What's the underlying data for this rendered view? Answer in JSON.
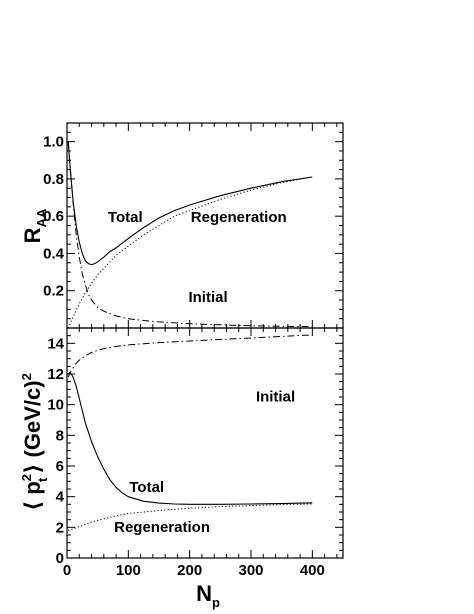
{
  "chart_data": [
    {
      "type": "line",
      "panel": "top",
      "title": "",
      "xlabel": "",
      "ylabel": "R",
      "ylabel_sub": "AA",
      "xlim": [
        0,
        450
      ],
      "ylim": [
        0,
        1.1
      ],
      "x_ticks": [
        "0",
        "100",
        "200",
        "300",
        "400"
      ],
      "x_tick_values": [
        0,
        100,
        200,
        300,
        400
      ],
      "y_ticks": [
        "0.2",
        "0.4",
        "0.6",
        "0.8",
        "1.0"
      ],
      "y_tick_values": [
        0.2,
        0.4,
        0.6,
        0.8,
        1.0
      ],
      "annotations": [
        {
          "text": "Total",
          "x": 95,
          "y": 0.57
        },
        {
          "text": "Regeneration",
          "x": 280,
          "y": 0.57
        },
        {
          "text": "Initial",
          "x": 230,
          "y": 0.14
        }
      ],
      "series": [
        {
          "style": "solid",
          "x": [
            2,
            5,
            10,
            15,
            20,
            25,
            30,
            35,
            40,
            45,
            50,
            60,
            70,
            80,
            100,
            125,
            150,
            175,
            200,
            250,
            300,
            350,
            400
          ],
          "y": [
            1.0,
            0.86,
            0.68,
            0.55,
            0.46,
            0.4,
            0.36,
            0.345,
            0.34,
            0.345,
            0.355,
            0.38,
            0.41,
            0.43,
            0.48,
            0.54,
            0.59,
            0.63,
            0.66,
            0.71,
            0.75,
            0.785,
            0.81
          ]
        },
        {
          "style": "dotted",
          "x": [
            2,
            10,
            20,
            30,
            40,
            50,
            60,
            80,
            100,
            125,
            150,
            175,
            200,
            250,
            300,
            350,
            400
          ],
          "y": [
            0.0,
            0.06,
            0.13,
            0.19,
            0.24,
            0.285,
            0.32,
            0.39,
            0.44,
            0.5,
            0.55,
            0.6,
            0.63,
            0.69,
            0.74,
            0.78,
            0.81
          ]
        },
        {
          "style": "dashdot",
          "x": [
            2,
            5,
            10,
            15,
            20,
            25,
            30,
            35,
            40,
            50,
            60,
            80,
            100,
            125,
            150,
            200,
            250,
            300,
            350,
            400
          ],
          "y": [
            1.0,
            0.87,
            0.67,
            0.5,
            0.38,
            0.29,
            0.23,
            0.18,
            0.15,
            0.11,
            0.09,
            0.065,
            0.05,
            0.04,
            0.033,
            0.023,
            0.017,
            0.012,
            0.009,
            0.007
          ]
        }
      ]
    },
    {
      "type": "line",
      "panel": "bottom",
      "title": "",
      "xlabel": "N",
      "xlabel_sub": "p",
      "ylabel": "⟨ p  ⟩ (GeV/c)",
      "ylabel_parts": {
        "left": "⟨ p",
        "sup": "2",
        "sub": "t",
        "right": "⟩ (GeV/c)",
        "unit_sup": "2"
      },
      "xlim": [
        0,
        450
      ],
      "ylim": [
        0,
        15
      ],
      "x_ticks": [
        "0",
        "100",
        "200",
        "300",
        "400"
      ],
      "x_tick_values": [
        0,
        100,
        200,
        300,
        400
      ],
      "y_ticks": [
        "0",
        "2",
        "4",
        "6",
        "8",
        "10",
        "12",
        "14"
      ],
      "y_tick_values": [
        0,
        2,
        4,
        6,
        8,
        10,
        12,
        14
      ],
      "annotations": [
        {
          "text": "Initial",
          "x": 340,
          "y": 10.2
        },
        {
          "text": "Total",
          "x": 130,
          "y": 4.3
        },
        {
          "text": "Regeneration",
          "x": 155,
          "y": 1.7
        }
      ],
      "series": [
        {
          "style": "solid",
          "x": [
            2,
            5,
            10,
            15,
            20,
            25,
            30,
            40,
            50,
            60,
            70,
            80,
            90,
            100,
            125,
            150,
            175,
            200,
            250,
            300,
            350,
            400
          ],
          "y": [
            12.0,
            12.1,
            11.8,
            11.2,
            10.4,
            9.6,
            8.8,
            7.6,
            6.6,
            5.8,
            5.1,
            4.6,
            4.25,
            4.0,
            3.7,
            3.58,
            3.52,
            3.5,
            3.5,
            3.52,
            3.55,
            3.6
          ]
        },
        {
          "style": "dotted",
          "x": [
            2,
            10,
            20,
            30,
            40,
            50,
            60,
            80,
            100,
            125,
            150,
            200,
            250,
            300,
            350,
            400
          ],
          "y": [
            1.8,
            1.9,
            2.05,
            2.2,
            2.35,
            2.45,
            2.55,
            2.75,
            2.9,
            3.0,
            3.1,
            3.25,
            3.35,
            3.42,
            3.48,
            3.52
          ]
        },
        {
          "style": "dashdot",
          "x": [
            2,
            5,
            10,
            15,
            20,
            30,
            40,
            50,
            60,
            80,
            100,
            150,
            200,
            250,
            300,
            350,
            400
          ],
          "y": [
            11.8,
            12.1,
            12.4,
            12.7,
            12.9,
            13.2,
            13.4,
            13.55,
            13.65,
            13.8,
            13.9,
            14.05,
            14.15,
            14.25,
            14.35,
            14.45,
            14.55
          ]
        }
      ]
    }
  ]
}
